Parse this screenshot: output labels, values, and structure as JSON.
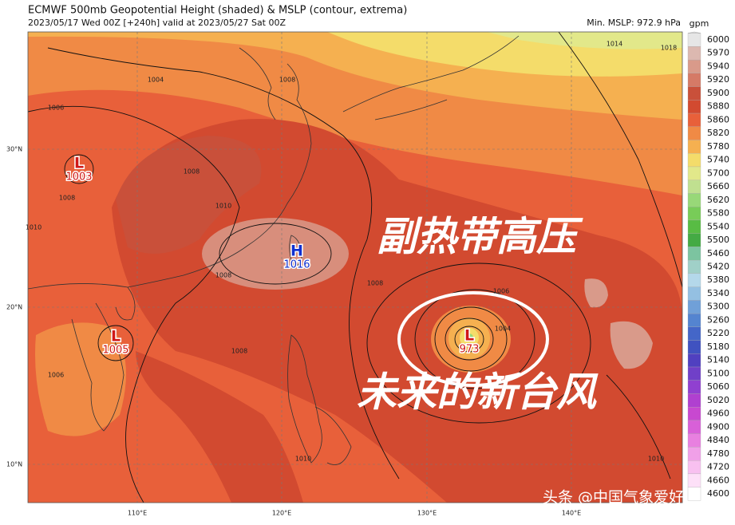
{
  "header": {
    "title": "ECMWF 500mb Geopotential Height (shaded) & MSLP (contour, extrema)",
    "subtitle": "2023/05/17 Wed 00Z [+240h] valid at 2023/05/27 Sat 00Z",
    "min_mslp": "Min. MSLP: 972.9 hPa"
  },
  "colorbar": {
    "unit": "gpm",
    "levels": [
      {
        "label": "6000",
        "color": "#e6e6e6"
      },
      {
        "label": "5970",
        "color": "#dcb8b0"
      },
      {
        "label": "5940",
        "color": "#d99a8a"
      },
      {
        "label": "5920",
        "color": "#d57a66"
      },
      {
        "label": "5900",
        "color": "#c9503a"
      },
      {
        "label": "5880",
        "color": "#d24a30"
      },
      {
        "label": "5860",
        "color": "#e8603a"
      },
      {
        "label": "5820",
        "color": "#f08a45"
      },
      {
        "label": "5780",
        "color": "#f5b050"
      },
      {
        "label": "5740",
        "color": "#f4dc6a"
      },
      {
        "label": "5700",
        "color": "#e2e88a"
      },
      {
        "label": "5660",
        "color": "#c0e090"
      },
      {
        "label": "5620",
        "color": "#98d878"
      },
      {
        "label": "5580",
        "color": "#78cc58"
      },
      {
        "label": "5540",
        "color": "#58bc44"
      },
      {
        "label": "5500",
        "color": "#44aa44"
      },
      {
        "label": "5460",
        "color": "#7cc4a0"
      },
      {
        "label": "5420",
        "color": "#a0d0c8"
      },
      {
        "label": "5380",
        "color": "#b4d8ea"
      },
      {
        "label": "5340",
        "color": "#94c0e2"
      },
      {
        "label": "5300",
        "color": "#70a0d8"
      },
      {
        "label": "5260",
        "color": "#5484d0"
      },
      {
        "label": "5220",
        "color": "#4466c8"
      },
      {
        "label": "5180",
        "color": "#4052c0"
      },
      {
        "label": "5140",
        "color": "#5040c0"
      },
      {
        "label": "5100",
        "color": "#7040c8"
      },
      {
        "label": "5060",
        "color": "#9040d0"
      },
      {
        "label": "5020",
        "color": "#b040d0"
      },
      {
        "label": "4960",
        "color": "#c848d0"
      },
      {
        "label": "4900",
        "color": "#d860d8"
      },
      {
        "label": "4840",
        "color": "#e880e0"
      },
      {
        "label": "4780",
        "color": "#f0a0e8"
      },
      {
        "label": "4720",
        "color": "#f8c0f0"
      },
      {
        "label": "4660",
        "color": "#fde0f8"
      },
      {
        "label": "4600",
        "color": "#ffffff"
      }
    ]
  },
  "axes": {
    "lat_labels": [
      "30°N",
      "20°N",
      "10°N"
    ],
    "lon_labels": [
      "110°E",
      "120°E",
      "130°E",
      "140°E"
    ]
  },
  "pressure_centers": [
    {
      "symbol": "L",
      "value": "1003"
    },
    {
      "symbol": "H",
      "value": "1016"
    },
    {
      "symbol": "L",
      "value": "1005"
    },
    {
      "symbol": "L",
      "value": "973"
    }
  ],
  "contour_labels": [
    "1008",
    "1008",
    "1008",
    "1004",
    "1006",
    "1006",
    "1008",
    "1008",
    "1008",
    "1014",
    "1018",
    "1006",
    "1004",
    "1010",
    "1010",
    "1010",
    "1010"
  ],
  "annotations": [
    "副热带高压",
    "未来的新台风"
  ],
  "watermark": "头条 @中国气象爱好者"
}
